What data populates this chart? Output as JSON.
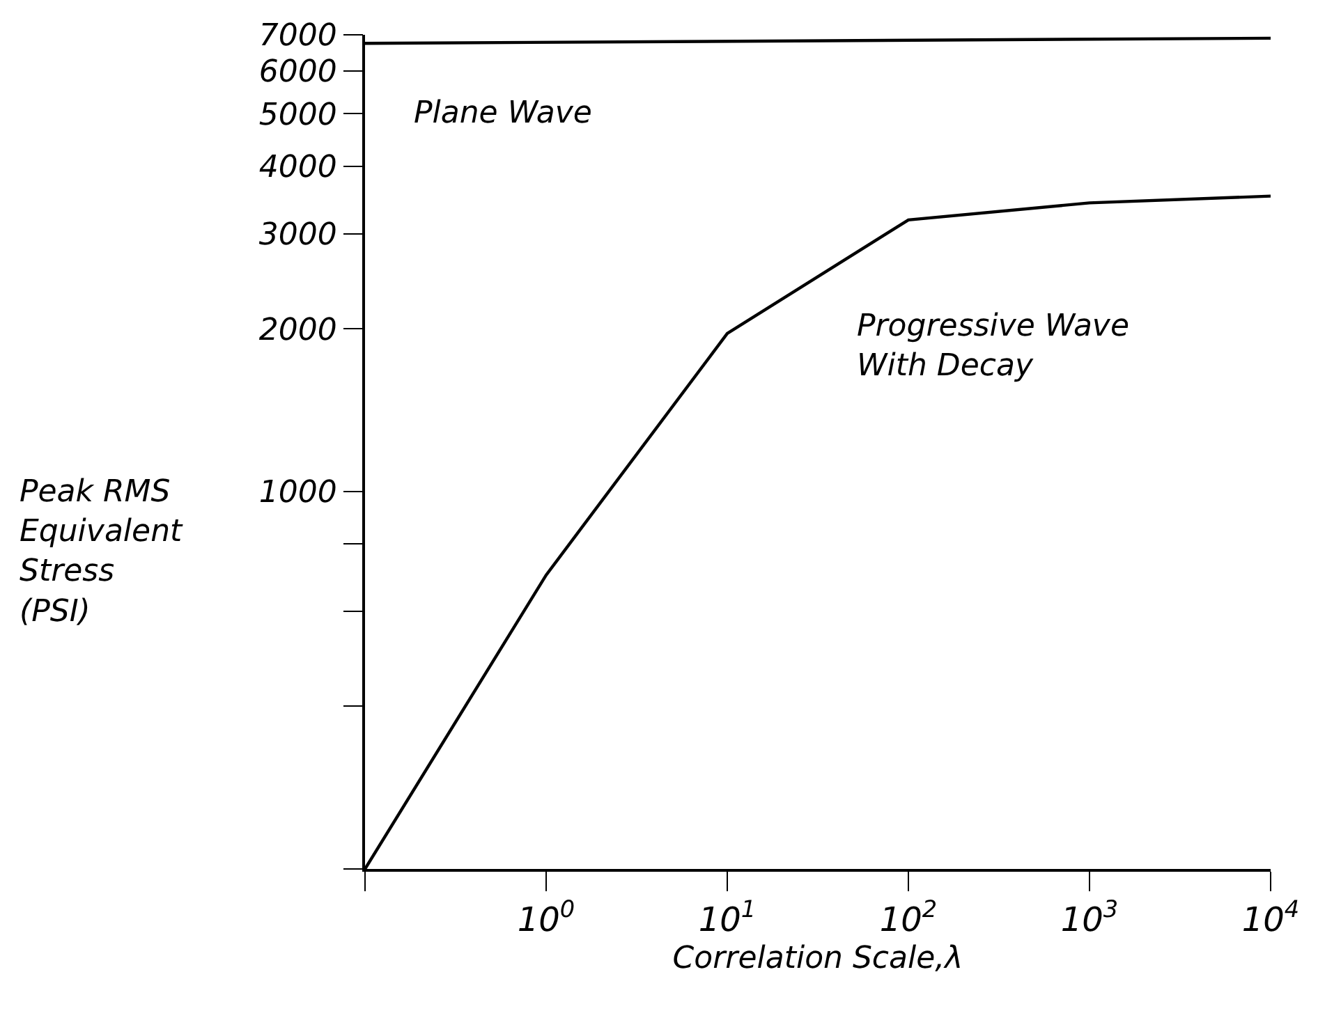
{
  "chart_data": {
    "type": "line",
    "xlabel": "Correlation Scale,λ",
    "ylabel": "Peak RMS Equivalent Stress (PSI)",
    "log": "xy",
    "line_style": "solid",
    "xlim": [
      0.1,
      10000
    ],
    "xticks": [
      {
        "value": 0.1,
        "label": null
      },
      {
        "value": 1,
        "label": "10$^{0}$"
      },
      {
        "value": 10,
        "label": "10$^{1}$"
      },
      {
        "value": 100,
        "label": "10$^{2}$"
      },
      {
        "value": 1000,
        "label": "10$^{3}$"
      },
      {
        "value": 10000,
        "label": "10$^{4}$"
      }
    ],
    "ylim": [
      200,
      7000
    ],
    "yticks": [
      {
        "value": 200,
        "label": null
      },
      {
        "value": 400,
        "label": null
      },
      {
        "value": 600,
        "label": null
      },
      {
        "value": 800,
        "label": null
      },
      1000,
      2000,
      3000,
      4000,
      5000,
      6000,
      7000
    ],
    "series": [
      {
        "name": "Plane Wave",
        "color": "#000000",
        "x": [
          0.1,
          10000
        ],
        "values": [
          6750,
          6900
        ]
      },
      {
        "name": "Progressive Wave With Decay",
        "color": "#000000",
        "x": [
          0.1,
          1,
          10,
          100,
          1000,
          10000
        ],
        "values": [
          200,
          700,
          1960,
          3180,
          3420,
          3520
        ]
      }
    ]
  }
}
